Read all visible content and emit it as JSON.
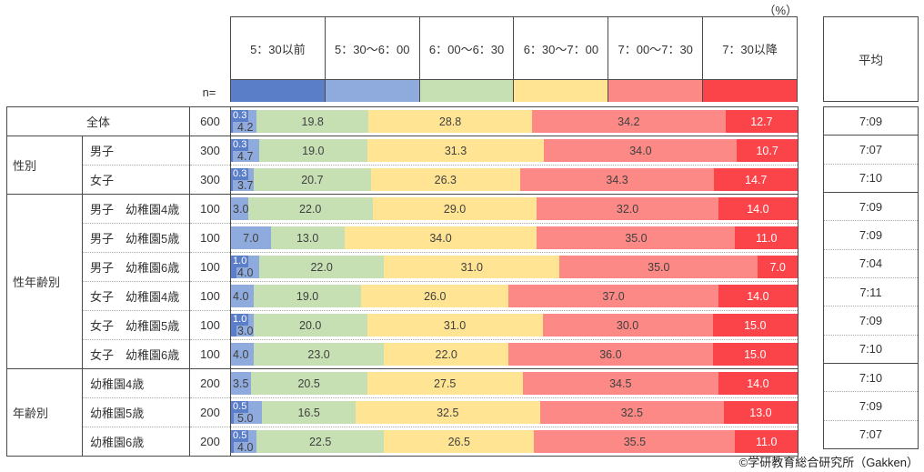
{
  "unit_label": "（%）",
  "n_label": "n=",
  "average_header": "平均",
  "footer": "©学研教育総合研究所（Gakken）",
  "colors": {
    "border": "#4a4a4a",
    "segment_colors": [
      "#5b7ec9",
      "#8faadc",
      "#c6e0b4",
      "#ffe493",
      "#fc8985",
      "#fb4449"
    ],
    "label_dark": "#404040",
    "label_light": "#ffffff"
  },
  "chart_data": {
    "type": "bar",
    "orientation": "horizontal",
    "stacked": true,
    "xlim": [
      0,
      100
    ],
    "unit": "%",
    "categories": [
      "5：30以前",
      "5：30～6：00",
      "6：00～6：30",
      "6：30～7：00",
      "7：00～7：30",
      "7：30以降"
    ],
    "rows": [
      {
        "group": "",
        "label": "全体",
        "merged": true,
        "n": 600,
        "values": [
          0.3,
          4.2,
          19.8,
          28.8,
          34.2,
          12.7
        ],
        "avg": "7:09"
      },
      {
        "group": "性別",
        "label": "男子",
        "n": 300,
        "values": [
          0.3,
          4.7,
          19.0,
          31.3,
          34.0,
          10.7
        ],
        "avg": "7:07"
      },
      {
        "group": "性別",
        "label": "女子",
        "n": 300,
        "values": [
          0.3,
          3.7,
          20.7,
          26.3,
          34.3,
          14.7
        ],
        "avg": "7:10"
      },
      {
        "group": "性年齢別",
        "label": "男子　幼稚園4歳",
        "n": 100,
        "values": [
          0,
          3.0,
          22.0,
          29.0,
          32.0,
          14.0
        ],
        "avg": "7:09"
      },
      {
        "group": "性年齢別",
        "label": "男子　幼稚園5歳",
        "n": 100,
        "values": [
          0,
          7.0,
          13.0,
          34.0,
          35.0,
          11.0
        ],
        "avg": "7:09"
      },
      {
        "group": "性年齢別",
        "label": "男子　幼稚園6歳",
        "n": 100,
        "values": [
          1.0,
          4.0,
          22.0,
          31.0,
          35.0,
          7.0
        ],
        "avg": "7:04"
      },
      {
        "group": "性年齢別",
        "label": "女子　幼稚園4歳",
        "n": 100,
        "values": [
          0,
          4.0,
          19.0,
          26.0,
          37.0,
          14.0
        ],
        "avg": "7:11"
      },
      {
        "group": "性年齢別",
        "label": "女子　幼稚園5歳",
        "n": 100,
        "values": [
          1.0,
          3.0,
          20.0,
          31.0,
          30.0,
          15.0
        ],
        "avg": "7:09"
      },
      {
        "group": "性年齢別",
        "label": "女子　幼稚園6歳",
        "n": 100,
        "values": [
          0,
          4.0,
          23.0,
          22.0,
          36.0,
          15.0
        ],
        "avg": "7:10"
      },
      {
        "group": "年齢別",
        "label": "幼稚園4歳",
        "n": 200,
        "values": [
          0,
          3.5,
          20.5,
          27.5,
          34.5,
          14.0
        ],
        "avg": "7:10"
      },
      {
        "group": "年齢別",
        "label": "幼稚園5歳",
        "n": 200,
        "values": [
          0.5,
          5.0,
          16.5,
          32.5,
          32.5,
          13.0
        ],
        "avg": "7:09"
      },
      {
        "group": "年齢別",
        "label": "幼稚園6歳",
        "n": 200,
        "values": [
          0.5,
          4.0,
          22.5,
          26.5,
          35.5,
          11.0
        ],
        "avg": "7:07"
      }
    ]
  }
}
